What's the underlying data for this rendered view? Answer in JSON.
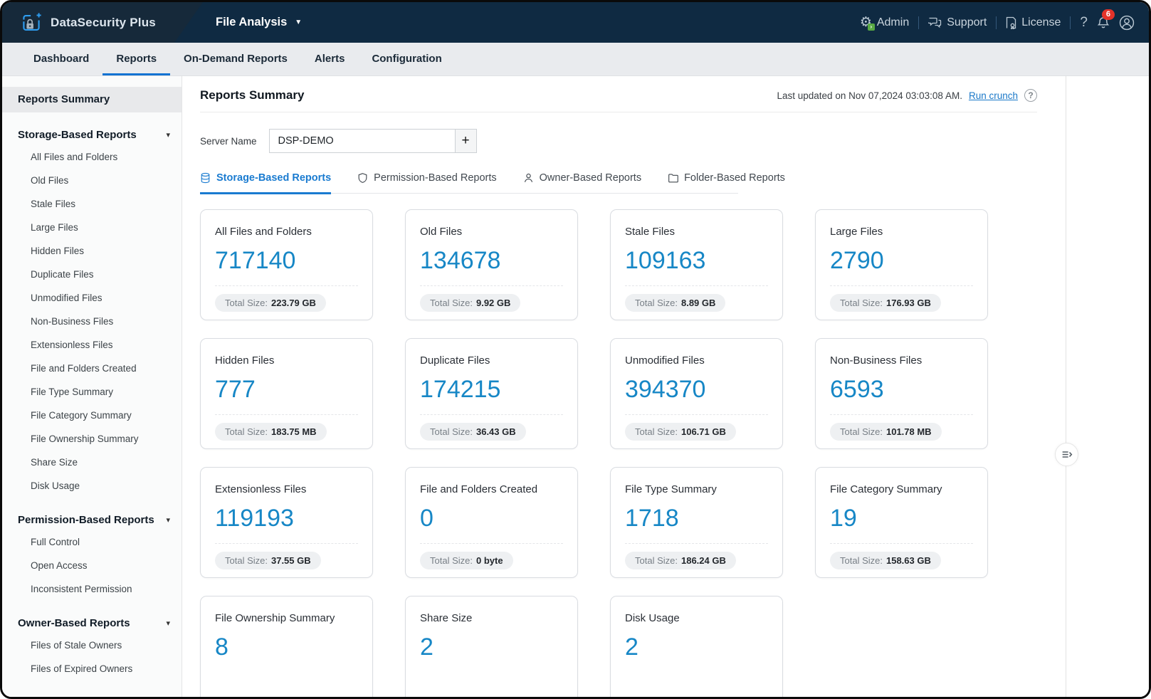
{
  "header": {
    "brand": "DataSecurity Plus",
    "product": "File Analysis",
    "links": [
      {
        "label": "Admin",
        "icon": "gear-icon"
      },
      {
        "label": "Support",
        "icon": "chat-icon"
      },
      {
        "label": "License",
        "icon": "license-icon"
      }
    ],
    "help": "?",
    "notification_count": "6"
  },
  "nav": {
    "tabs": [
      {
        "label": "Dashboard",
        "active": false
      },
      {
        "label": "Reports",
        "active": true
      },
      {
        "label": "On-Demand Reports",
        "active": false
      },
      {
        "label": "Alerts",
        "active": false
      },
      {
        "label": "Configuration",
        "active": false
      }
    ]
  },
  "sidebar": {
    "summary_label": "Reports Summary",
    "sections": [
      {
        "title": "Storage-Based Reports",
        "items": [
          "All Files and Folders",
          "Old Files",
          "Stale Files",
          "Large Files",
          "Hidden Files",
          "Duplicate Files",
          "Unmodified Files",
          "Non-Business Files",
          "Extensionless Files",
          "File and Folders Created",
          "File Type Summary",
          "File Category Summary",
          "File Ownership Summary",
          "Share Size",
          "Disk Usage"
        ]
      },
      {
        "title": "Permission-Based Reports",
        "items": [
          "Full Control",
          "Open Access",
          "Inconsistent Permission"
        ]
      },
      {
        "title": "Owner-Based Reports",
        "items": [
          "Files of Stale Owners",
          "Files of Expired Owners"
        ]
      }
    ]
  },
  "main": {
    "title": "Reports Summary",
    "last_updated": "Last updated on Nov 07,2024 03:03:08 AM.",
    "run_crunch": "Run crunch",
    "server_name_label": "Server Name",
    "server_name_value": "DSP-DEMO",
    "add_button": "+",
    "size_label": "Total Size:",
    "tabs": [
      {
        "label": "Storage-Based Reports",
        "icon": "database-icon",
        "active": true
      },
      {
        "label": "Permission-Based Reports",
        "icon": "shield-icon",
        "active": false
      },
      {
        "label": "Owner-Based Reports",
        "icon": "person-icon",
        "active": false
      },
      {
        "label": "Folder-Based Reports",
        "icon": "folder-icon",
        "active": false
      }
    ],
    "cards": [
      {
        "title": "All Files and Folders",
        "count": "717140",
        "size": "223.79 GB"
      },
      {
        "title": "Old Files",
        "count": "134678",
        "size": "9.92 GB"
      },
      {
        "title": "Stale Files",
        "count": "109163",
        "size": "8.89 GB"
      },
      {
        "title": "Large Files",
        "count": "2790",
        "size": "176.93 GB"
      },
      {
        "title": "Hidden Files",
        "count": "777",
        "size": "183.75 MB"
      },
      {
        "title": "Duplicate Files",
        "count": "174215",
        "size": "36.43 GB"
      },
      {
        "title": "Unmodified Files",
        "count": "394370",
        "size": "106.71 GB"
      },
      {
        "title": "Non-Business Files",
        "count": "6593",
        "size": "101.78 MB"
      },
      {
        "title": "Extensionless Files",
        "count": "119193",
        "size": "37.55 GB"
      },
      {
        "title": "File and Folders Created",
        "count": "0",
        "size": "0 byte"
      },
      {
        "title": "File Type Summary",
        "count": "1718",
        "size": "186.24 GB"
      },
      {
        "title": "File Category Summary",
        "count": "19",
        "size": "158.63 GB"
      },
      {
        "title": "File Ownership Summary",
        "count": "8",
        "size": null
      },
      {
        "title": "Share Size",
        "count": "2",
        "size": null
      },
      {
        "title": "Disk Usage",
        "count": "2",
        "size": null
      }
    ]
  },
  "colors": {
    "header_bg": "#0f2a42",
    "brand_bg": "#16293a",
    "accent_blue": "#1273d2",
    "count_blue": "#1787c6",
    "badge_red": "#e5332a",
    "nav_bg": "#e9ebee"
  }
}
